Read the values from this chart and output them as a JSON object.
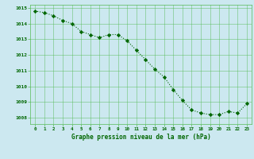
{
  "x": [
    0,
    1,
    2,
    3,
    4,
    5,
    6,
    7,
    8,
    9,
    10,
    11,
    12,
    13,
    14,
    15,
    16,
    17,
    18,
    19,
    20,
    21,
    22,
    23
  ],
  "y": [
    1014.8,
    1014.7,
    1014.5,
    1014.2,
    1014.0,
    1013.5,
    1013.3,
    1013.1,
    1013.3,
    1013.3,
    1012.9,
    1012.3,
    1011.7,
    1011.1,
    1010.6,
    1009.8,
    1009.1,
    1008.5,
    1008.3,
    1008.2,
    1008.2,
    1008.4,
    1008.3,
    1008.9
  ],
  "line_color": "#006600",
  "marker": "D",
  "marker_size": 2.2,
  "bg_color": "#cce8f0",
  "grid_color": "#55bb55",
  "xlabel": "Graphe pression niveau de la mer (hPa)",
  "xlabel_color": "#006600",
  "tick_color": "#006600",
  "ylim": [
    1007.6,
    1015.2
  ],
  "xlim": [
    -0.5,
    23.5
  ],
  "yticks": [
    1008,
    1009,
    1010,
    1011,
    1012,
    1013,
    1014,
    1015
  ],
  "xticks": [
    0,
    1,
    2,
    3,
    4,
    5,
    6,
    7,
    8,
    9,
    10,
    11,
    12,
    13,
    14,
    15,
    16,
    17,
    18,
    19,
    20,
    21,
    22,
    23
  ]
}
